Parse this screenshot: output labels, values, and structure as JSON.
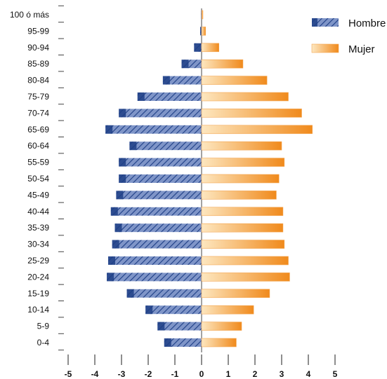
{
  "chart_data": {
    "type": "bar",
    "orientation": "horizontal",
    "categories": [
      "100 ó más",
      "95-99",
      "90-94",
      "85-89",
      "80-84",
      "75-79",
      "70-74",
      "65-69",
      "60-64",
      "55-59",
      "50-54",
      "45-49",
      "40-44",
      "35-39",
      "30-34",
      "25-29",
      "20-24",
      "15-19",
      "10-14",
      "5-9",
      "0-4"
    ],
    "series": [
      {
        "name": "Hombre",
        "values": [
          -0.02,
          -0.05,
          -0.28,
          -0.75,
          -1.45,
          -2.4,
          -3.1,
          -3.6,
          -2.7,
          -3.1,
          -3.1,
          -3.2,
          -3.4,
          -3.25,
          -3.35,
          -3.5,
          -3.55,
          -2.8,
          -2.1,
          -1.65,
          -1.4
        ]
      },
      {
        "name": "Mujer",
        "values": [
          0.05,
          0.15,
          0.65,
          1.55,
          2.45,
          3.25,
          3.75,
          4.15,
          3.0,
          3.1,
          2.9,
          2.8,
          3.05,
          3.05,
          3.1,
          3.25,
          3.3,
          2.55,
          1.95,
          1.5,
          1.3
        ]
      }
    ],
    "xlim": [
      -5,
      5
    ],
    "xticks": [
      "-5",
      "-4",
      "-3",
      "-2",
      "-1",
      "0",
      "1",
      "2",
      "3",
      "4",
      "5"
    ],
    "legend_position": "top-right",
    "grid": false,
    "colors": {
      "hombre_dark": "#1e3f86",
      "hombre_light": "#7f95c8",
      "mujer_dark": "#f08a1c",
      "mujer_light": "#fde7c0",
      "axis": "#444444"
    }
  }
}
